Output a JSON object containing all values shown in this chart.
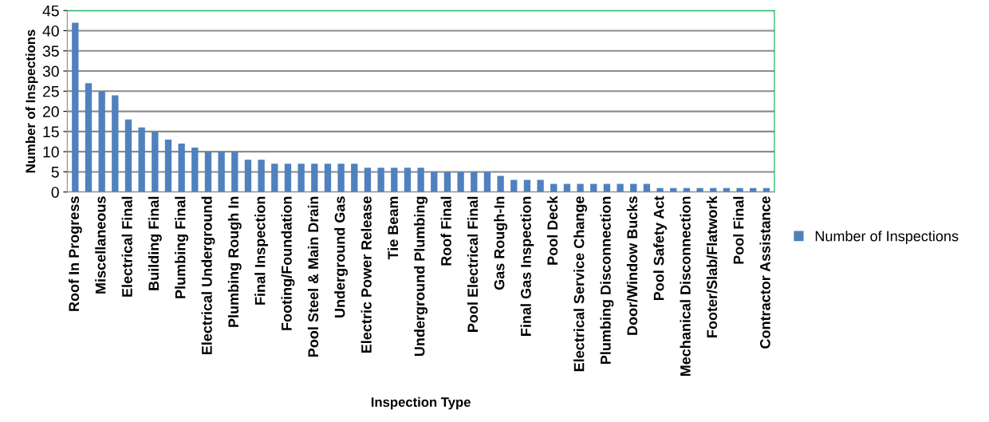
{
  "chart_data": {
    "type": "bar",
    "xlabel": "Inspection Type",
    "ylabel": "Number of Inspections",
    "categories": [
      "Roof In Progress",
      null,
      "Miscellaneous",
      null,
      "Electrical Final",
      null,
      "Building Final",
      null,
      "Plumbing Final",
      null,
      "Electrical Underground",
      null,
      "Plumbing Rough In",
      null,
      "Final Inspection",
      null,
      "Footing/Foundation",
      null,
      "Pool Steel & Main Drain",
      null,
      "Underground Gas",
      null,
      "Electric Power Release",
      null,
      "Tie Beam",
      null,
      "Underground Plumbing",
      null,
      "Roof Final",
      null,
      "Pool Electrical Final",
      null,
      "Gas Rough-In",
      null,
      "Final Gas Inspection",
      null,
      "Pool Deck",
      null,
      "Electrical Service Change",
      null,
      "Plumbing Disconnection",
      null,
      "Door/Window Bucks",
      null,
      "Pool Safety Act",
      null,
      "Mechanical Disconnection",
      null,
      "Footer/Slab/Flatwork",
      null,
      "Pool Final",
      null,
      "Contractor Assistance"
    ],
    "series": [
      {
        "name": "Number of Inspections",
        "color": "#4f81bd",
        "values": [
          42,
          27,
          25,
          24,
          18,
          16,
          15,
          13,
          12,
          11,
          10,
          10,
          10,
          8,
          8,
          7,
          7,
          7,
          7,
          7,
          7,
          7,
          6,
          6,
          6,
          6,
          6,
          5,
          5,
          5,
          5,
          5,
          4,
          3,
          3,
          3,
          2,
          2,
          2,
          2,
          2,
          2,
          2,
          2,
          1,
          1,
          1,
          1,
          1,
          1,
          1,
          1,
          1
        ]
      }
    ],
    "ylim": [
      0,
      45
    ],
    "yticks": [
      0,
      5,
      10,
      15,
      20,
      25,
      30,
      35,
      40,
      45
    ],
    "grid": "y",
    "legend": "right"
  }
}
